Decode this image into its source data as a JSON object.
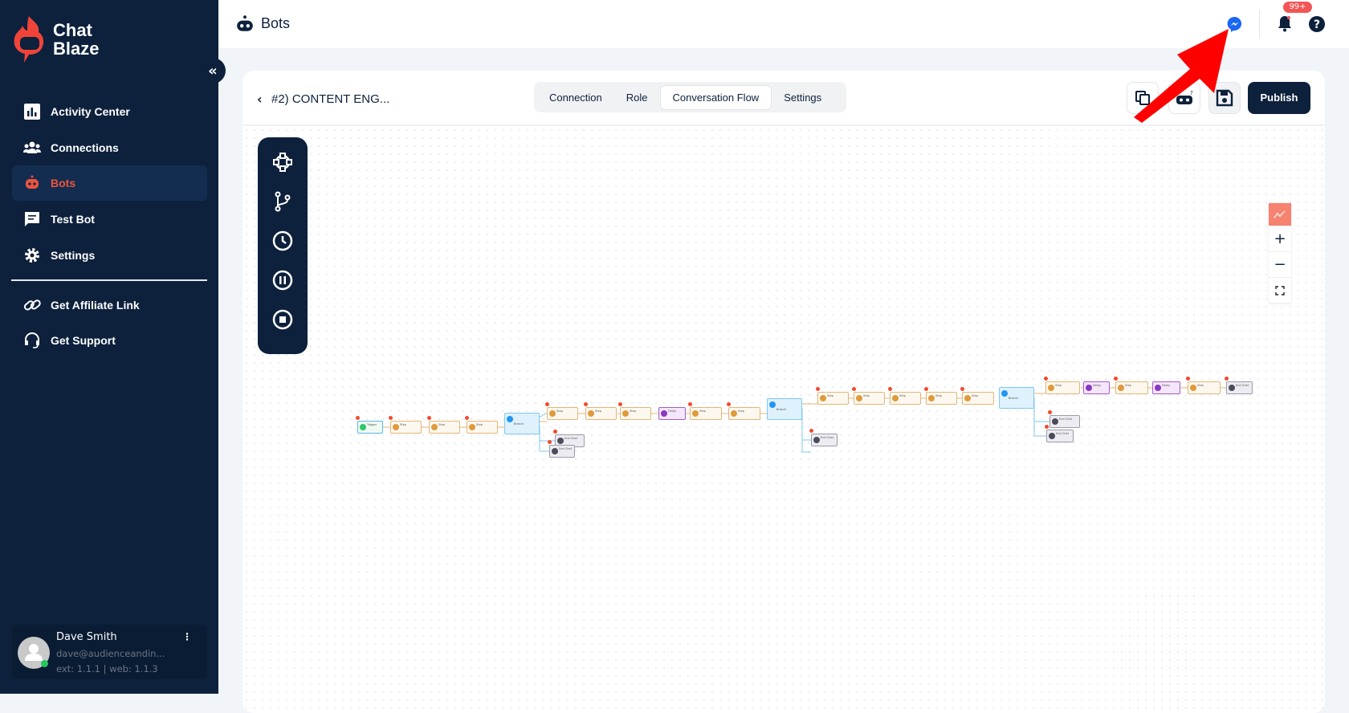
{
  "brand": {
    "name_line1": "Chat",
    "name_line2": "Blaze",
    "accent": "#f04438"
  },
  "sidebar": {
    "items": [
      {
        "label": "Activity Center",
        "icon": "chart-icon"
      },
      {
        "label": "Connections",
        "icon": "users-icon"
      },
      {
        "label": "Bots",
        "icon": "robot-icon",
        "active": true
      },
      {
        "label": "Test Bot",
        "icon": "chat-icon"
      },
      {
        "label": "Settings",
        "icon": "gear-icon"
      },
      {
        "label": "Get Affiliate Link",
        "icon": "link-icon"
      },
      {
        "label": "Get Support",
        "icon": "headset-icon"
      }
    ],
    "user": {
      "name": "Dave Smith",
      "email": "dave@audienceandin...",
      "version": "ext: 1.1.1 | web: 1.1.3"
    }
  },
  "header": {
    "title": "Bots",
    "notification_badge": "99+"
  },
  "bot": {
    "title": "#2) CONTENT ENG...",
    "tabs": [
      "Connection",
      "Role",
      "Conversation Flow",
      "Settings"
    ],
    "active_tab": "Conversation Flow",
    "publish_label": "Publish"
  },
  "canvas": {
    "nodes": [
      {
        "type": "Trigger"
      },
      {
        "type": "Step"
      },
      {
        "type": "Step"
      },
      {
        "type": "Step"
      },
      {
        "type": "Branch"
      },
      {
        "type": "Step"
      },
      {
        "type": "End Chat"
      },
      {
        "type": "End Chat"
      },
      {
        "type": "Step"
      },
      {
        "type": "Step"
      },
      {
        "type": "Delay"
      },
      {
        "type": "Step"
      },
      {
        "type": "Step"
      },
      {
        "type": "Branch"
      },
      {
        "type": "Step"
      },
      {
        "type": "Step"
      },
      {
        "type": "Step"
      },
      {
        "type": "Step"
      },
      {
        "type": "Step"
      },
      {
        "type": "End Chat"
      },
      {
        "type": "Branch"
      },
      {
        "type": "Step"
      },
      {
        "type": "Delay"
      },
      {
        "type": "Step"
      },
      {
        "type": "Delay"
      },
      {
        "type": "Step"
      },
      {
        "type": "End Chat"
      },
      {
        "type": "End Chat"
      },
      {
        "type": "End Chat"
      }
    ]
  }
}
